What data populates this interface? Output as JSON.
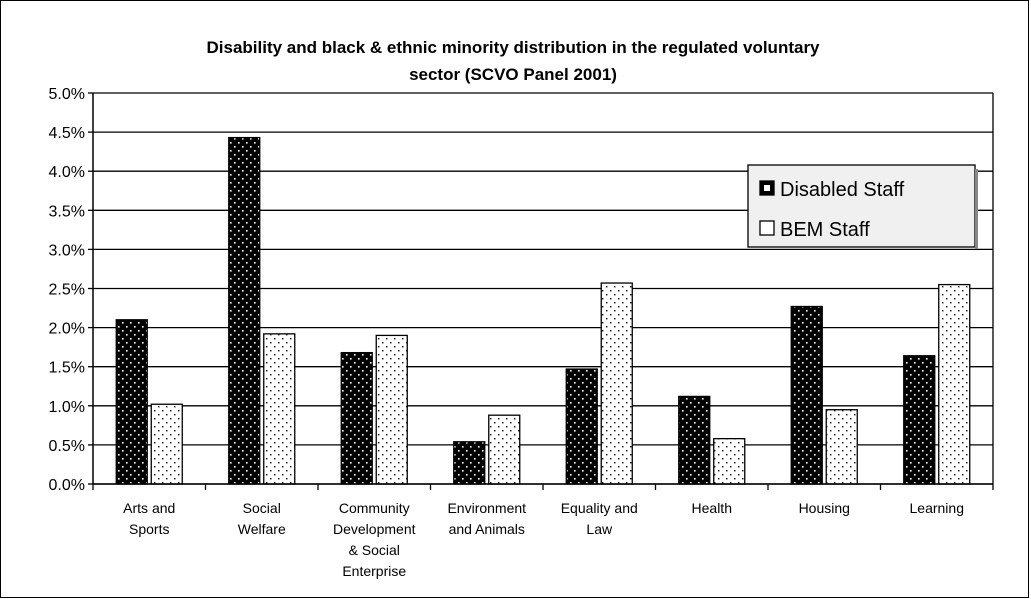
{
  "chart_data": {
    "type": "bar",
    "title": [
      "Disability and black & ethnic minority distribution in the regulated voluntary",
      "sector (SCVO Panel 2001)"
    ],
    "xlabel": "",
    "ylabel": "",
    "ylim": [
      0,
      5.0
    ],
    "y_ticks": [
      "0.0%",
      "0.5%",
      "1.0%",
      "1.5%",
      "2.0%",
      "2.5%",
      "3.0%",
      "3.5%",
      "4.0%",
      "4.5%",
      "5.0%"
    ],
    "y_tick_values": [
      0,
      0.5,
      1.0,
      1.5,
      2.0,
      2.5,
      3.0,
      3.5,
      4.0,
      4.5,
      5.0
    ],
    "grid": true,
    "legend_position": "right",
    "categories": [
      [
        "Arts and",
        "Sports"
      ],
      [
        "Social",
        "Welfare"
      ],
      [
        "Community",
        "Development",
        "& Social",
        "Enterprise"
      ],
      [
        "Environment",
        "and Animals"
      ],
      [
        "Equality and",
        "Law"
      ],
      [
        "Health"
      ],
      [
        "Housing"
      ],
      [
        "Learning"
      ]
    ],
    "series": [
      {
        "name": "Disabled Staff",
        "values": [
          2.1,
          4.43,
          1.68,
          0.54,
          1.47,
          1.12,
          2.27,
          1.64
        ],
        "color": "#000000"
      },
      {
        "name": "BEM Staff",
        "values": [
          1.02,
          1.92,
          1.9,
          0.88,
          2.57,
          0.58,
          0.95,
          2.55
        ],
        "color": "#ffffff"
      }
    ]
  }
}
